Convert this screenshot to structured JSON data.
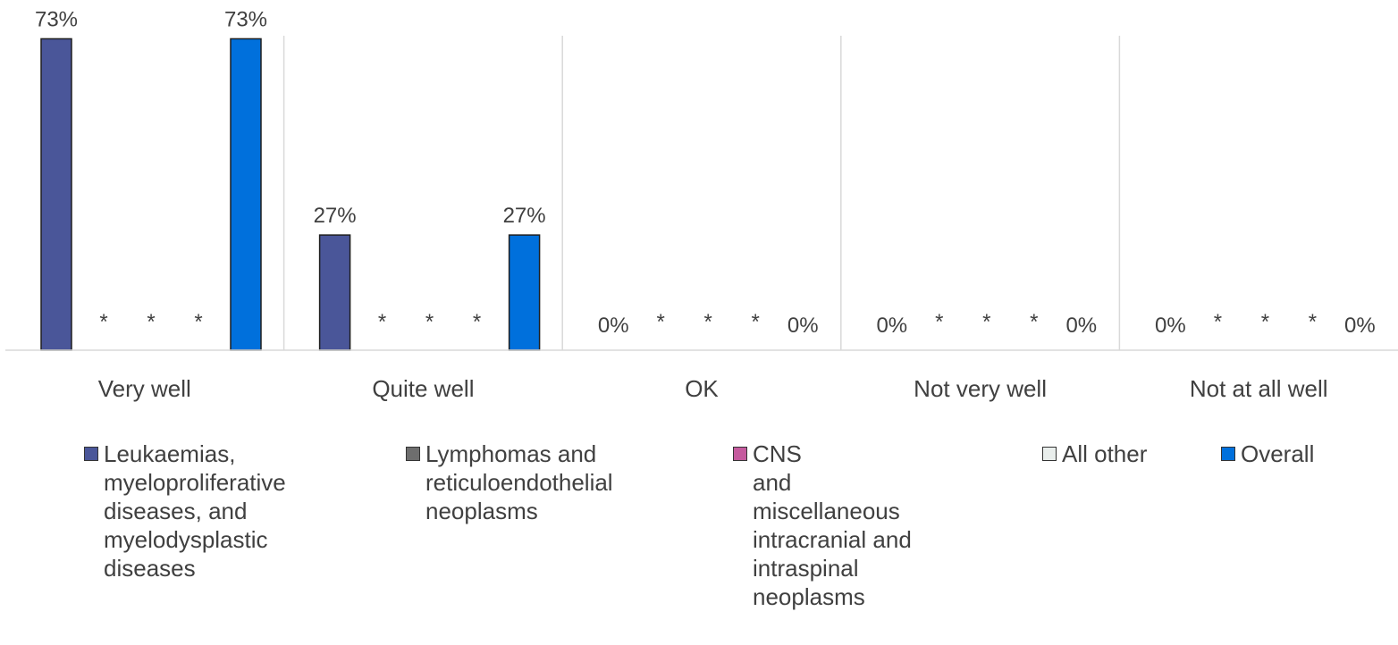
{
  "chart_data": {
    "type": "bar",
    "title": "",
    "xlabel": "",
    "ylabel": "",
    "ylim": [
      0,
      80
    ],
    "grid": "vertical-separators",
    "legend_position": "bottom",
    "categories": [
      "Very well",
      "Quite well",
      "OK",
      "Not very well",
      "Not at all well"
    ],
    "series": [
      {
        "name": "Leukaemias, myeloproliferative diseases, and myelodysplastic diseases",
        "color": "#4A5699",
        "values": [
          73,
          27,
          0,
          0,
          0
        ],
        "labels": [
          "73%",
          "27%",
          "0%",
          "0%",
          "0%"
        ]
      },
      {
        "name": "Lymphomas and reticuloendothelial neoplasms",
        "color": "#6E6E6E",
        "values": [
          null,
          null,
          null,
          null,
          null
        ],
        "labels": [
          "*",
          "*",
          "*",
          "*",
          "*"
        ]
      },
      {
        "name": "CNS and miscellaneous intracranial and intraspinal neoplasms",
        "color": "#C55A9E",
        "values": [
          null,
          null,
          null,
          null,
          null
        ],
        "labels": [
          "*",
          "*",
          "*",
          "*",
          "*"
        ]
      },
      {
        "name": "All other",
        "color": "#E9EEEC",
        "values": [
          null,
          null,
          null,
          null,
          null
        ],
        "labels": [
          "*",
          "*",
          "*",
          "*",
          "*"
        ]
      },
      {
        "name": "Overall",
        "color": "#0070DC",
        "values": [
          73,
          27,
          0,
          0,
          0
        ],
        "labels": [
          "73%",
          "27%",
          "0%",
          "0%",
          "0%"
        ]
      }
    ]
  },
  "legend": {
    "items": [
      {
        "lines": [
          "Leukaemias,",
          "myeloproliferative",
          "diseases, and",
          "myelodysplastic",
          "diseases"
        ]
      },
      {
        "lines": [
          "Lymphomas and",
          "reticuloendothelial",
          "neoplasms"
        ]
      },
      {
        "lines": [
          "CNS",
          "and",
          "miscellaneous",
          "intracranial and",
          "intraspinal",
          "neoplasms"
        ]
      },
      {
        "lines": [
          "All other"
        ]
      },
      {
        "lines": [
          "Overall"
        ]
      }
    ]
  }
}
